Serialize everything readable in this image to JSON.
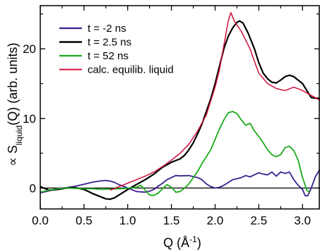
{
  "chart_data": {
    "type": "line",
    "xlabel": "Q (Å⁻¹)",
    "ylabel": "∝ S_liquid(Q) (arb. units)",
    "ylabel_parts": {
      "prefix": "∝ S",
      "subscript": "liquid",
      "suffix": "(Q) (arb. units)"
    },
    "xlabel_parts": {
      "base": "Q (Å",
      "superscript": "-1",
      "suffix": ")"
    },
    "xlim": [
      0.0,
      3.2
    ],
    "ylim": [
      -3.0,
      26.2
    ],
    "x_ticks": [
      0.0,
      0.5,
      1.0,
      1.5,
      2.0,
      2.5,
      3.0
    ],
    "x_tick_labels": [
      "0.0",
      "0.5",
      "1.0",
      "1.5",
      "2.0",
      "2.5",
      "3.0"
    ],
    "y_ticks": [
      0,
      10,
      20
    ],
    "y_tick_labels": [
      "0",
      "10",
      "20"
    ],
    "grid": false,
    "legend_position": "top-left",
    "zero_line": true,
    "series": [
      {
        "name": "t = -2 ns",
        "color": "#3b1f8f",
        "width": 1.8,
        "points": [
          [
            0.0,
            -0.7
          ],
          [
            0.1,
            -0.4
          ],
          [
            0.2,
            -0.05
          ],
          [
            0.3,
            0.05
          ],
          [
            0.4,
            0.25
          ],
          [
            0.5,
            0.55
          ],
          [
            0.6,
            0.85
          ],
          [
            0.7,
            1.05
          ],
          [
            0.75,
            1.1
          ],
          [
            0.8,
            1.0
          ],
          [
            0.85,
            0.8
          ],
          [
            0.9,
            0.5
          ],
          [
            1.0,
            0.0
          ],
          [
            1.1,
            -0.5
          ],
          [
            1.2,
            -0.6
          ],
          [
            1.25,
            -0.45
          ],
          [
            1.3,
            -0.2
          ],
          [
            1.35,
            0.3
          ],
          [
            1.4,
            0.7
          ],
          [
            1.45,
            1.2
          ],
          [
            1.5,
            1.5
          ],
          [
            1.55,
            1.8
          ],
          [
            1.6,
            1.75
          ],
          [
            1.7,
            1.8
          ],
          [
            1.8,
            1.5
          ],
          [
            1.85,
            1.2
          ],
          [
            1.9,
            0.6
          ],
          [
            1.95,
            0.2
          ],
          [
            2.0,
            0.0
          ],
          [
            2.05,
            0.1
          ],
          [
            2.1,
            0.4
          ],
          [
            2.2,
            1.2
          ],
          [
            2.3,
            1.5
          ],
          [
            2.35,
            1.8
          ],
          [
            2.4,
            1.6
          ],
          [
            2.5,
            2.2
          ],
          [
            2.55,
            2.0
          ],
          [
            2.6,
            1.9
          ],
          [
            2.65,
            2.3
          ],
          [
            2.7,
            1.7
          ],
          [
            2.75,
            2.3
          ],
          [
            2.8,
            2.1
          ],
          [
            2.85,
            2.3
          ],
          [
            2.9,
            1.2
          ],
          [
            2.95,
            0.4
          ],
          [
            3.0,
            -0.2
          ],
          [
            3.03,
            -1.1
          ],
          [
            3.06,
            -1.1
          ],
          [
            3.1,
            0.0
          ],
          [
            3.15,
            1.7
          ],
          [
            3.2,
            2.7
          ]
        ]
      },
      {
        "name": "t = 2.5 ns",
        "color": "#000000",
        "width": 2.2,
        "points": [
          [
            0.0,
            0.2
          ],
          [
            0.1,
            -0.3
          ],
          [
            0.2,
            -0.2
          ],
          [
            0.3,
            0.0
          ],
          [
            0.4,
            0.05
          ],
          [
            0.5,
            -0.2
          ],
          [
            0.55,
            -0.5
          ],
          [
            0.6,
            -0.8
          ],
          [
            0.7,
            -1.3
          ],
          [
            0.75,
            -1.55
          ],
          [
            0.8,
            -1.6
          ],
          [
            0.85,
            -1.4
          ],
          [
            0.9,
            -1.0
          ],
          [
            1.0,
            -0.2
          ],
          [
            1.1,
            0.5
          ],
          [
            1.2,
            1.2
          ],
          [
            1.3,
            2.0
          ],
          [
            1.4,
            3.0
          ],
          [
            1.5,
            3.7
          ],
          [
            1.6,
            4.2
          ],
          [
            1.65,
            4.7
          ],
          [
            1.7,
            5.5
          ],
          [
            1.75,
            6.5
          ],
          [
            1.8,
            7.8
          ],
          [
            1.85,
            9.2
          ],
          [
            1.9,
            11.0
          ],
          [
            1.95,
            12.8
          ],
          [
            2.0,
            15.0
          ],
          [
            2.05,
            17.5
          ],
          [
            2.1,
            20.0
          ],
          [
            2.15,
            21.8
          ],
          [
            2.2,
            23.0
          ],
          [
            2.25,
            23.8
          ],
          [
            2.28,
            24.0
          ],
          [
            2.32,
            23.7
          ],
          [
            2.38,
            22.2
          ],
          [
            2.45,
            20.0
          ],
          [
            2.5,
            18.0
          ],
          [
            2.55,
            16.5
          ],
          [
            2.6,
            15.7
          ],
          [
            2.65,
            15.2
          ],
          [
            2.7,
            15.1
          ],
          [
            2.75,
            15.5
          ],
          [
            2.8,
            16.0
          ],
          [
            2.85,
            16.2
          ],
          [
            2.9,
            16.0
          ],
          [
            2.95,
            15.5
          ],
          [
            3.0,
            15.0
          ],
          [
            3.05,
            14.0
          ],
          [
            3.1,
            13.0
          ],
          [
            3.15,
            12.9
          ],
          [
            3.2,
            12.9
          ]
        ]
      },
      {
        "name": "t = 52 ns",
        "color": "#1cab1c",
        "width": 1.8,
        "points": [
          [
            0.0,
            -0.6
          ],
          [
            0.1,
            -0.3
          ],
          [
            0.2,
            -0.1
          ],
          [
            0.3,
            0.0
          ],
          [
            0.4,
            -0.05
          ],
          [
            0.5,
            -0.1
          ],
          [
            0.6,
            -0.1
          ],
          [
            0.7,
            -0.2
          ],
          [
            0.8,
            -0.15
          ],
          [
            0.9,
            -0.1
          ],
          [
            1.0,
            -0.05
          ],
          [
            1.1,
            0.1
          ],
          [
            1.15,
            0.4
          ],
          [
            1.2,
            -0.3
          ],
          [
            1.25,
            -1.0
          ],
          [
            1.3,
            -1.05
          ],
          [
            1.35,
            -0.7
          ],
          [
            1.4,
            -0.1
          ],
          [
            1.45,
            0.5
          ],
          [
            1.5,
            0.1
          ],
          [
            1.55,
            -0.6
          ],
          [
            1.6,
            -0.5
          ],
          [
            1.65,
            0.0
          ],
          [
            1.7,
            0.6
          ],
          [
            1.75,
            1.5
          ],
          [
            1.8,
            2.4
          ],
          [
            1.85,
            3.5
          ],
          [
            1.9,
            4.5
          ],
          [
            1.95,
            5.5
          ],
          [
            2.0,
            7.0
          ],
          [
            2.05,
            8.5
          ],
          [
            2.1,
            9.8
          ],
          [
            2.15,
            10.8
          ],
          [
            2.2,
            11.0
          ],
          [
            2.25,
            10.7
          ],
          [
            2.3,
            9.8
          ],
          [
            2.35,
            9.0
          ],
          [
            2.4,
            9.3
          ],
          [
            2.45,
            8.2
          ],
          [
            2.5,
            7.4
          ],
          [
            2.55,
            6.5
          ],
          [
            2.6,
            5.5
          ],
          [
            2.65,
            4.8
          ],
          [
            2.7,
            4.5
          ],
          [
            2.75,
            4.8
          ],
          [
            2.8,
            5.8
          ],
          [
            2.85,
            6.0
          ],
          [
            2.9,
            5.4
          ],
          [
            2.95,
            4.0
          ],
          [
            3.0,
            1.5
          ],
          [
            3.05,
            -0.3
          ],
          [
            3.08,
            -0.6
          ]
        ]
      },
      {
        "name": "calc. equilib. liquid",
        "color": "#d0103a",
        "width": 1.5,
        "points": [
          [
            0.8,
            -0.3
          ],
          [
            0.9,
            0.2
          ],
          [
            1.0,
            0.7
          ],
          [
            1.1,
            1.2
          ],
          [
            1.2,
            1.7
          ],
          [
            1.3,
            2.3
          ],
          [
            1.4,
            3.1
          ],
          [
            1.5,
            4.0
          ],
          [
            1.6,
            5.0
          ],
          [
            1.7,
            6.3
          ],
          [
            1.8,
            8.2
          ],
          [
            1.9,
            10.5
          ],
          [
            2.0,
            14.5
          ],
          [
            2.05,
            17.0
          ],
          [
            2.1,
            20.5
          ],
          [
            2.15,
            24.0
          ],
          [
            2.18,
            25.2
          ],
          [
            2.22,
            24.0
          ],
          [
            2.3,
            22.5
          ],
          [
            2.4,
            20.0
          ],
          [
            2.45,
            18.2
          ],
          [
            2.5,
            16.5
          ],
          [
            2.6,
            15.0
          ],
          [
            2.7,
            14.3
          ],
          [
            2.8,
            14.0
          ],
          [
            2.9,
            14.5
          ],
          [
            3.0,
            14.0
          ],
          [
            3.1,
            13.3
          ],
          [
            3.2,
            12.6
          ]
        ]
      }
    ]
  }
}
